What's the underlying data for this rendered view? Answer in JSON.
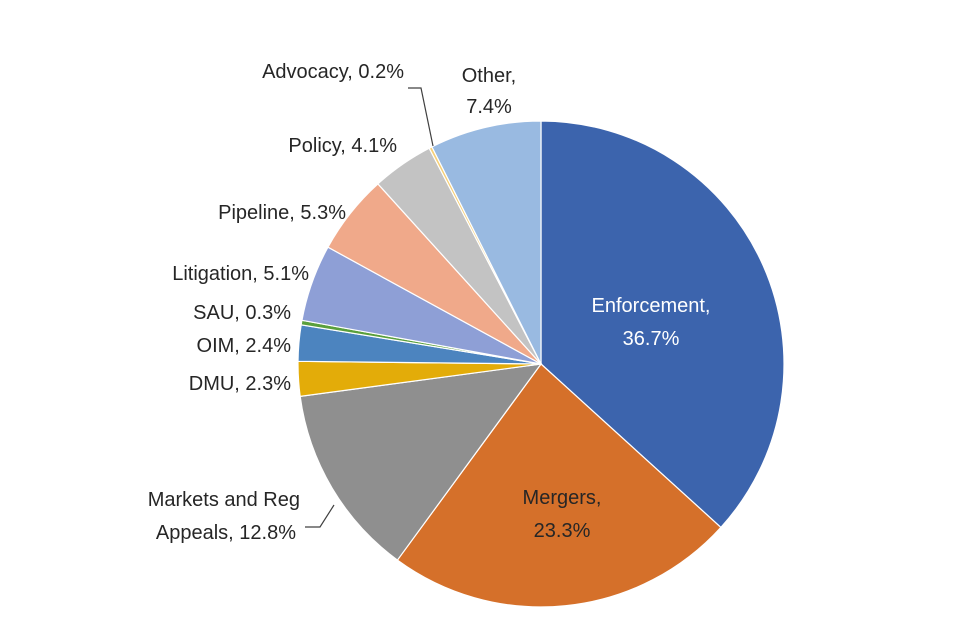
{
  "chart_data": {
    "type": "pie",
    "title": "",
    "start_angle_deg": 0,
    "direction": "clockwise",
    "legend": "none",
    "slices": [
      {
        "name": "Enforcement",
        "value": 36.7,
        "label": "Enforcement,",
        "value_label": "36.7%",
        "color": "#3C64AD",
        "label_placement": "inside"
      },
      {
        "name": "Mergers",
        "value": 23.3,
        "label": "Mergers,",
        "value_label": "23.3%",
        "color": "#D5702A",
        "label_placement": "inside"
      },
      {
        "name": "Markets and Reg Appeals",
        "value": 12.8,
        "label": "Markets and Reg",
        "value_label": "Appeals, 12.8%",
        "color": "#8F8F8F",
        "label_placement": "outside-leader"
      },
      {
        "name": "DMU",
        "value": 2.3,
        "label": "DMU, 2.3%",
        "value_label": "",
        "color": "#E3AC09",
        "label_placement": "outside"
      },
      {
        "name": "OIM",
        "value": 2.4,
        "label": "OIM, 2.4%",
        "value_label": "",
        "color": "#4C84BF",
        "label_placement": "outside"
      },
      {
        "name": "SAU",
        "value": 0.3,
        "label": "SAU, 0.3%",
        "value_label": "",
        "color": "#5A9F3C",
        "label_placement": "outside"
      },
      {
        "name": "Litigation",
        "value": 5.1,
        "label": "Litigation, 5.1%",
        "value_label": "",
        "color": "#8E9FD6",
        "label_placement": "outside"
      },
      {
        "name": "Pipeline",
        "value": 5.3,
        "label": "Pipeline, 5.3%",
        "value_label": "",
        "color": "#F0A98A",
        "label_placement": "outside"
      },
      {
        "name": "Policy",
        "value": 4.1,
        "label": "Policy, 4.1%",
        "value_label": "",
        "color": "#C3C3C3",
        "label_placement": "outside"
      },
      {
        "name": "Advocacy",
        "value": 0.2,
        "label": "Advocacy, 0.2%",
        "value_label": "",
        "color": "#F6D07A",
        "label_placement": "outside-leader"
      },
      {
        "name": "Other",
        "value": 7.4,
        "label": "Other,",
        "value_label": "7.4%",
        "color": "#99BAE1",
        "label_placement": "outside"
      }
    ]
  }
}
